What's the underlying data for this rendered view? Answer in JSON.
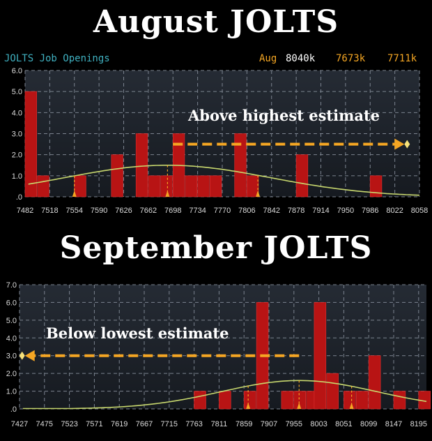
{
  "titles": {
    "top": "August JOLTS",
    "bottom": "September JOLTS"
  },
  "header": {
    "series_label": "JOLTS Job Openings",
    "period": "Aug",
    "actual": "8040k",
    "median": "7673k",
    "average": "7711k",
    "colors": {
      "label": "#3fb0c0",
      "period": "#f5a623",
      "actual": "#ffffff",
      "median": "#f5a623",
      "average": "#f5a623"
    }
  },
  "chart_data": [
    {
      "type": "bar",
      "title": "August JOLTS",
      "annotation": "Above highest estimate",
      "xlabel": "",
      "ylabel": "",
      "x_ticks": [
        7482,
        7518,
        7554,
        7590,
        7626,
        7662,
        7698,
        7734,
        7770,
        7806,
        7842,
        7878,
        7914,
        7950,
        7986,
        8022,
        8058
      ],
      "xlim": [
        7482,
        8058
      ],
      "y_ticks": [
        "6.0",
        "5.0",
        "4.0",
        "3.0",
        "2.0",
        "1.0",
        ".0"
      ],
      "ylim": [
        0,
        6
      ],
      "bin_width": 18,
      "bars": [
        {
          "x": 7482,
          "value": 5
        },
        {
          "x": 7500,
          "value": 1
        },
        {
          "x": 7554,
          "value": 1
        },
        {
          "x": 7608,
          "value": 2
        },
        {
          "x": 7644,
          "value": 3
        },
        {
          "x": 7662,
          "value": 1
        },
        {
          "x": 7680,
          "value": 1
        },
        {
          "x": 7698,
          "value": 3
        },
        {
          "x": 7716,
          "value": 1
        },
        {
          "x": 7734,
          "value": 1
        },
        {
          "x": 7752,
          "value": 1
        },
        {
          "x": 7788,
          "value": 3
        },
        {
          "x": 7806,
          "value": 1
        },
        {
          "x": 7878,
          "value": 2
        },
        {
          "x": 7986,
          "value": 1
        }
      ],
      "curve": {
        "mean": 7690,
        "sd": 150,
        "peak": 1.5
      },
      "markers": [
        7554,
        7690,
        7822
      ],
      "arrow": {
        "from": 7698,
        "to": 8040,
        "direction": "right",
        "y": 2.5
      },
      "grid": true,
      "colors": {
        "bar": "#b81414",
        "curve": "#c8d86e",
        "arrow": "#f5a623",
        "grid": "#7c8490"
      }
    },
    {
      "type": "bar",
      "title": "September JOLTS",
      "annotation": "Below lowest estimate",
      "xlabel": "",
      "ylabel": "",
      "x_ticks": [
        7427,
        7475,
        7523,
        7571,
        7619,
        7667,
        7715,
        7763,
        7811,
        7859,
        7907,
        7955,
        8003,
        8051,
        8099,
        8147,
        8195
      ],
      "xlim": [
        7427,
        8210
      ],
      "y_ticks": [
        "7.0",
        "6.0",
        "5.0",
        "4.0",
        "3.0",
        "2.0",
        "1.0",
        ".0"
      ],
      "ylim": [
        0,
        7
      ],
      "bin_width": 24,
      "bars": [
        {
          "x": 7763,
          "value": 1
        },
        {
          "x": 7811,
          "value": 1
        },
        {
          "x": 7859,
          "value": 1
        },
        {
          "x": 7883,
          "value": 6
        },
        {
          "x": 7931,
          "value": 1
        },
        {
          "x": 7955,
          "value": 1
        },
        {
          "x": 7979,
          "value": 1
        },
        {
          "x": 7994,
          "value": 6
        },
        {
          "x": 8018,
          "value": 2
        },
        {
          "x": 8051,
          "value": 1
        },
        {
          "x": 8075,
          "value": 1
        },
        {
          "x": 8099,
          "value": 3
        },
        {
          "x": 8147,
          "value": 1
        },
        {
          "x": 8195,
          "value": 1
        }
      ],
      "curve": {
        "mean": 7965,
        "sd": 150,
        "peak": 1.6
      },
      "markers": [
        7867,
        7965,
        8066
      ],
      "arrow": {
        "from": 7965,
        "to": 7432,
        "direction": "left",
        "y": 3.0
      },
      "grid": true,
      "colors": {
        "bar": "#b81414",
        "curve": "#c8d86e",
        "arrow": "#f5a623",
        "grid": "#7c8490"
      }
    }
  ]
}
